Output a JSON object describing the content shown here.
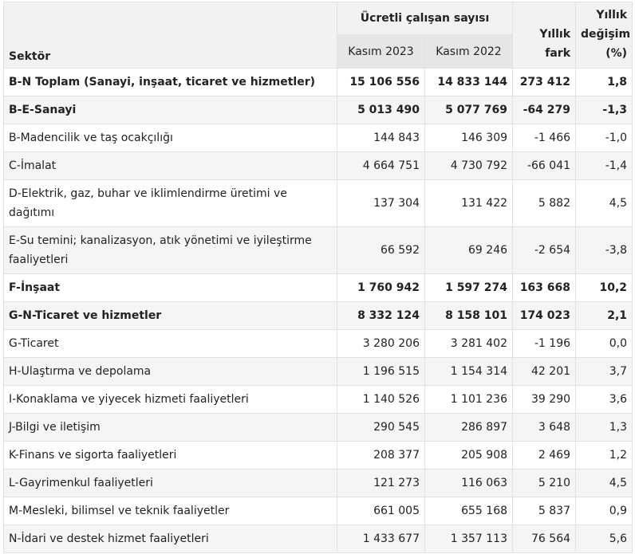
{
  "header": {
    "sector_label": "Sektör",
    "group_label": "Ücretli çalışan sayısı",
    "col_2023": "Kasım 2023",
    "col_2022": "Kasım 2022",
    "col_diff_line1": "Yıllık",
    "col_diff_line2": "fark",
    "col_change_line1": "Yıllık",
    "col_change_line2": "değişim",
    "col_change_line3": "(%)"
  },
  "rows": [
    {
      "sector": "B-N Toplam (Sanayi, inşaat, ticaret ve hizmetler)",
      "y2023": "15 106 556",
      "y2022": "14 833 144",
      "diff": "273 412",
      "change": "1,8"
    },
    {
      "sector": "B-E-Sanayi",
      "y2023": "5 013 490",
      "y2022": "5 077 769",
      "diff": "-64 279",
      "change": "-1,3"
    },
    {
      "sector": "B-Madencilik ve taş ocakçılığı",
      "y2023": "144 843",
      "y2022": "146 309",
      "diff": "-1 466",
      "change": "-1,0"
    },
    {
      "sector": "C-İmalat",
      "y2023": "4 664 751",
      "y2022": "4 730 792",
      "diff": "-66 041",
      "change": "-1,4"
    },
    {
      "sector": "D-Elektrik, gaz, buhar ve iklimlendirme üretimi ve dağıtımı",
      "y2023": "137 304",
      "y2022": "131 422",
      "diff": "5 882",
      "change": "4,5"
    },
    {
      "sector": "E-Su temini; kanalizasyon, atık yönetimi ve iyileştirme faaliyetleri",
      "y2023": "66 592",
      "y2022": "69 246",
      "diff": "-2 654",
      "change": "-3,8"
    },
    {
      "sector": "F-İnşaat",
      "y2023": "1 760 942",
      "y2022": "1 597 274",
      "diff": "163 668",
      "change": "10,2"
    },
    {
      "sector": "G-N-Ticaret ve hizmetler",
      "y2023": "8 332 124",
      "y2022": "8 158 101",
      "diff": "174 023",
      "change": "2,1"
    },
    {
      "sector": "G-Ticaret",
      "y2023": "3 280 206",
      "y2022": "3 281 402",
      "diff": "-1 196",
      "change": "0,0"
    },
    {
      "sector": "H-Ulaştırma ve depolama",
      "y2023": "1 196 515",
      "y2022": "1 154 314",
      "diff": "42 201",
      "change": "3,7"
    },
    {
      "sector": "I-Konaklama ve yiyecek hizmeti faaliyetleri",
      "y2023": "1 140 526",
      "y2022": "1 101 236",
      "diff": "39 290",
      "change": "3,6"
    },
    {
      "sector": "J-Bilgi ve iletişim",
      "y2023": "290 545",
      "y2022": "286 897",
      "diff": "3 648",
      "change": "1,3"
    },
    {
      "sector": "K-Finans ve sigorta faaliyetleri",
      "y2023": "208 377",
      "y2022": "205 908",
      "diff": "2 469",
      "change": "1,2"
    },
    {
      "sector": "L-Gayrimenkul faaliyetleri",
      "y2023": "121 273",
      "y2022": "116 063",
      "diff": "5 210",
      "change": "4,5"
    },
    {
      "sector": "M-Mesleki, bilimsel ve teknik faaliyetler",
      "y2023": "661 005",
      "y2022": "655 168",
      "diff": "5 837",
      "change": "0,9"
    },
    {
      "sector": "N-İdari ve destek hizmet faaliyetleri",
      "y2023": "1 433 677",
      "y2022": "1 357 113",
      "diff": "76 564",
      "change": "5,6"
    }
  ]
}
